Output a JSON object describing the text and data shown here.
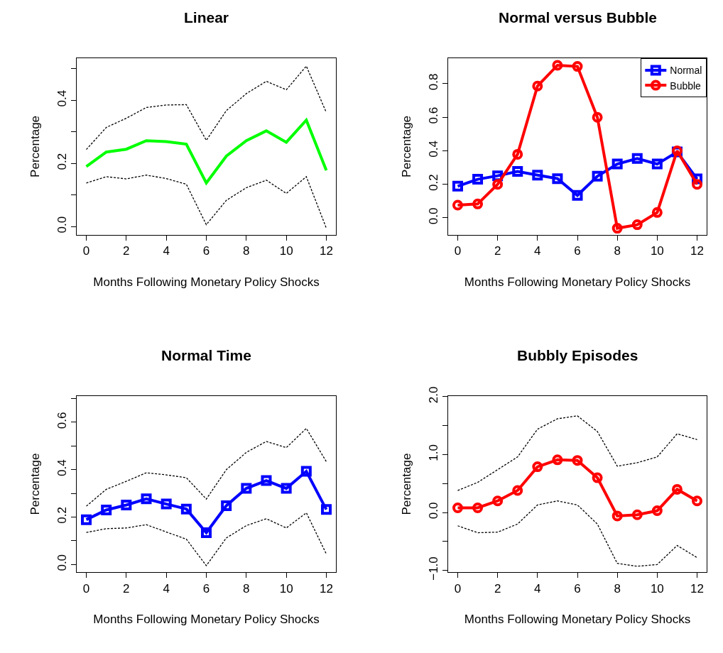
{
  "chart_data": [
    {
      "type": "line",
      "title": "Linear",
      "xlabel": "Months Following Monetary Policy Shocks",
      "ylabel": "Percentage",
      "x": [
        0,
        1,
        2,
        3,
        4,
        5,
        6,
        7,
        8,
        9,
        10,
        11,
        12
      ],
      "xlim": [
        -0.48,
        12.48
      ],
      "xticks": [
        0,
        2,
        4,
        6,
        8,
        10,
        12
      ],
      "ylim": [
        -0.026,
        0.533
      ],
      "yticks": [
        {
          "value": 0.0,
          "label": "0.0"
        },
        {
          "value": 0.1,
          "label": null
        },
        {
          "value": 0.2,
          "label": "0.2"
        },
        {
          "value": 0.3,
          "label": null
        },
        {
          "value": 0.4,
          "label": "0.4"
        },
        {
          "value": 0.5,
          "label": null
        }
      ],
      "grid": false,
      "legend": false,
      "series": [
        {
          "color": "#00ff00",
          "values": [
            0.19,
            0.236,
            0.245,
            0.272,
            0.269,
            0.261,
            0.138,
            0.223,
            0.272,
            0.303,
            0.267,
            0.337,
            0.178
          ]
        },
        {
          "color": "#000000",
          "line_style": "dashed",
          "values": [
            0.244,
            0.314,
            0.343,
            0.377,
            0.385,
            0.386,
            0.273,
            0.367,
            0.421,
            0.46,
            0.433,
            0.508,
            0.361
          ]
        },
        {
          "color": "#000000",
          "line_style": "dashed",
          "values": [
            0.138,
            0.158,
            0.151,
            0.163,
            0.152,
            0.134,
            0.006,
            0.083,
            0.123,
            0.147,
            0.105,
            0.158,
            -0.005
          ]
        }
      ]
    },
    {
      "type": "line",
      "title": "Normal versus Bubble",
      "xlabel": "Months Following Monetary Policy Shocks",
      "ylabel": "Percentage",
      "x": [
        0,
        1,
        2,
        3,
        4,
        5,
        6,
        7,
        8,
        9,
        10,
        11,
        12
      ],
      "xlim": [
        -0.48,
        12.48
      ],
      "xticks": [
        0,
        2,
        4,
        6,
        8,
        10,
        12
      ],
      "ylim": [
        -0.101,
        0.952
      ],
      "yticks": [
        {
          "value": 0.0,
          "label": "0.0"
        },
        {
          "value": 0.2,
          "label": "0.2"
        },
        {
          "value": 0.4,
          "label": "0.4"
        },
        {
          "value": 0.6,
          "label": "0.6"
        },
        {
          "value": 0.8,
          "label": "0.8"
        }
      ],
      "grid": false,
      "legend": "top right",
      "series": [
        {
          "name": "Normal",
          "color": "#0000ff",
          "marker": "square",
          "values": [
            0.189,
            0.23,
            0.251,
            0.277,
            0.255,
            0.234,
            0.134,
            0.248,
            0.321,
            0.354,
            0.321,
            0.393,
            0.232
          ]
        },
        {
          "name": "Bubble",
          "color": "#ff0000",
          "marker": "circle",
          "values": [
            0.076,
            0.083,
            0.2,
            0.379,
            0.786,
            0.91,
            0.903,
            0.6,
            -0.062,
            -0.041,
            0.032,
            0.4,
            0.2
          ]
        }
      ]
    },
    {
      "type": "line",
      "title": "Normal Time",
      "xlabel": "Months Following Monetary Policy Shocks",
      "ylabel": "Percentage",
      "x": [
        0,
        1,
        2,
        3,
        4,
        5,
        6,
        7,
        8,
        9,
        10,
        11,
        12
      ],
      "xlim": [
        -0.48,
        12.48
      ],
      "xticks": [
        0,
        2,
        4,
        6,
        8,
        10,
        12
      ],
      "ylim": [
        -0.032,
        0.71
      ],
      "yticks": [
        {
          "value": 0.0,
          "label": "0.0"
        },
        {
          "value": 0.1,
          "label": null
        },
        {
          "value": 0.2,
          "label": "0.2"
        },
        {
          "value": 0.3,
          "label": null
        },
        {
          "value": 0.4,
          "label": "0.4"
        },
        {
          "value": 0.5,
          "label": null
        },
        {
          "value": 0.6,
          "label": "0.6"
        },
        {
          "value": 0.7,
          "label": null
        }
      ],
      "grid": false,
      "legend": false,
      "series": [
        {
          "color": "#0000ff",
          "marker": "square",
          "values": [
            0.189,
            0.23,
            0.251,
            0.277,
            0.255,
            0.234,
            0.134,
            0.248,
            0.321,
            0.354,
            0.321,
            0.393,
            0.232
          ]
        },
        {
          "color": "#000000",
          "line_style": "dashed",
          "values": [
            0.246,
            0.317,
            0.351,
            0.387,
            0.378,
            0.366,
            0.276,
            0.4,
            0.473,
            0.519,
            0.493,
            0.574,
            0.434
          ]
        },
        {
          "color": "#000000",
          "line_style": "dashed",
          "values": [
            0.135,
            0.151,
            0.154,
            0.168,
            0.137,
            0.107,
            -0.005,
            0.112,
            0.164,
            0.193,
            0.154,
            0.218,
            0.044
          ]
        }
      ]
    },
    {
      "type": "line",
      "title": "Bubbly Episodes",
      "xlabel": "Months Following Monetary Policy Shocks",
      "ylabel": "Percentage",
      "x": [
        0,
        1,
        2,
        3,
        4,
        5,
        6,
        7,
        8,
        9,
        10,
        11,
        12
      ],
      "xlim": [
        -0.48,
        12.48
      ],
      "xticks": [
        0,
        2,
        4,
        6,
        8,
        10,
        12
      ],
      "ylim": [
        -1.03,
        2.01
      ],
      "yticks": [
        {
          "value": -1.0,
          "label": "−1.0"
        },
        {
          "value": -0.5,
          "label": null
        },
        {
          "value": 0.0,
          "label": "0.0"
        },
        {
          "value": 0.5,
          "label": null
        },
        {
          "value": 1.0,
          "label": "1.0"
        },
        {
          "value": 1.5,
          "label": null
        },
        {
          "value": 2.0,
          "label": "2.0"
        }
      ],
      "grid": false,
      "legend": false,
      "series": [
        {
          "color": "#ff0000",
          "marker": "circle",
          "values": [
            0.08,
            0.08,
            0.2,
            0.38,
            0.79,
            0.91,
            0.9,
            0.6,
            -0.06,
            -0.04,
            0.03,
            0.4,
            0.2
          ]
        },
        {
          "color": "#000000",
          "line_style": "dashed",
          "values": [
            0.38,
            0.52,
            0.74,
            0.96,
            1.44,
            1.62,
            1.67,
            1.4,
            0.8,
            0.86,
            0.96,
            1.36,
            1.26
          ]
        },
        {
          "color": "#000000",
          "line_style": "dashed",
          "values": [
            -0.23,
            -0.35,
            -0.34,
            -0.2,
            0.13,
            0.2,
            0.13,
            -0.2,
            -0.88,
            -0.93,
            -0.9,
            -0.57,
            -0.78
          ]
        }
      ]
    }
  ]
}
